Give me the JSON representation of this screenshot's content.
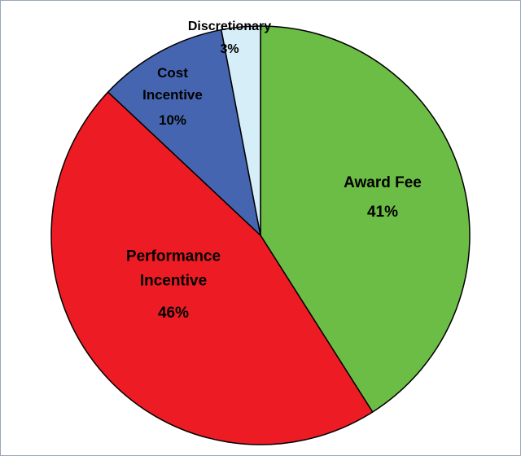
{
  "chart_data": {
    "type": "pie",
    "categories": [
      "Award Fee",
      "Performance Incentive",
      "Cost Incentive",
      "Discretionary"
    ],
    "values": [
      41,
      46,
      10,
      3
    ],
    "value_labels": [
      "41%",
      "46%",
      "10%",
      "3%"
    ],
    "colors": [
      "#6cbd45",
      "#ed1c24",
      "#4565b0",
      "#d6eef8"
    ],
    "start_angle": 0,
    "direction": "clockwise"
  }
}
